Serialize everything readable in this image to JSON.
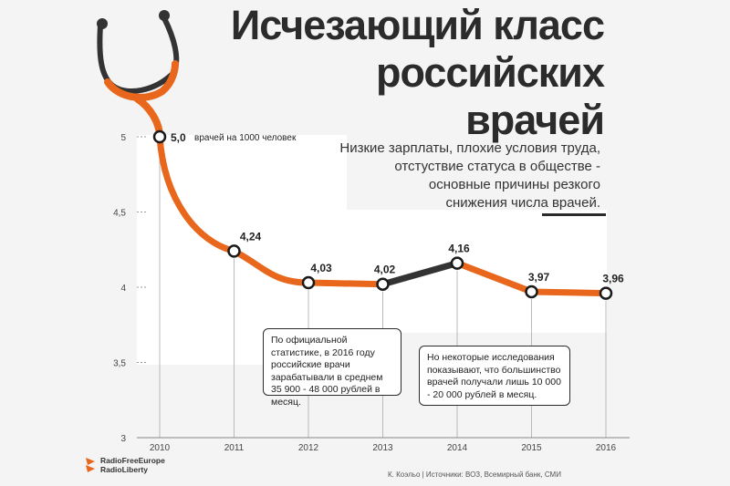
{
  "title": {
    "line1": "Исчезающий класс",
    "line2": "российских",
    "line3": "врачей"
  },
  "subtitle": {
    "line1": "Низкие зарплаты, плохие условия труда,",
    "line2": "отстуствие статуса в обществе -",
    "line3": "основные причины резкого",
    "line4": "снижения числа врачей."
  },
  "annotations": {
    "first_point_unit": "врачей на 1000 человек",
    "callout1": "По официальной статистике, в 2016 году российские врачи зарабатывали в среднем 35 900 - 48 000 рублей в месяц.",
    "callout2": "Но некоторые исследования показывают, что большинство врачей получали лишь 10 000 - 20 000 рублей в месяц."
  },
  "logo": {
    "line1": "RadioFreeEurope",
    "line2": "RadioLiberty"
  },
  "source": "К. Коэльо | Источники: ВОЗ, Всемирный банк, СМИ",
  "colors": {
    "line": "#e8671c",
    "highlight_segment": "#333333",
    "text": "#2b2b2b",
    "background": "#f4f4f4"
  },
  "chart_data": {
    "type": "line",
    "title": "Исчезающий класс российских врачей",
    "xlabel": "",
    "ylabel": "",
    "x": [
      "2010",
      "2011",
      "2012",
      "2013",
      "2014",
      "2015",
      "2016"
    ],
    "series": [
      {
        "values": [
          5.0,
          4.24,
          4.03,
          4.02,
          4.16,
          3.97,
          3.96
        ]
      }
    ],
    "value_labels": [
      "5,0",
      "4,24",
      "4,03",
      "4,02",
      "4,16",
      "3,97",
      "3,96"
    ],
    "y_ticks": [
      "3",
      "3,5",
      "4",
      "4,5",
      "5"
    ],
    "y_tick_values": [
      3,
      3.5,
      4,
      4.5,
      5
    ],
    "ylim": [
      3,
      5
    ],
    "grid": false
  }
}
